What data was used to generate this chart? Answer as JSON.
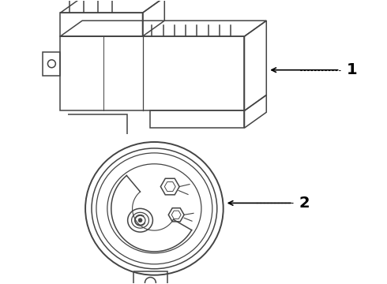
{
  "bg_color": "#ffffff",
  "line_color": "#444444",
  "label_color": "#000000",
  "fig_width": 4.9,
  "fig_height": 3.6,
  "dpi": 100,
  "label1": "1",
  "label2": "2"
}
